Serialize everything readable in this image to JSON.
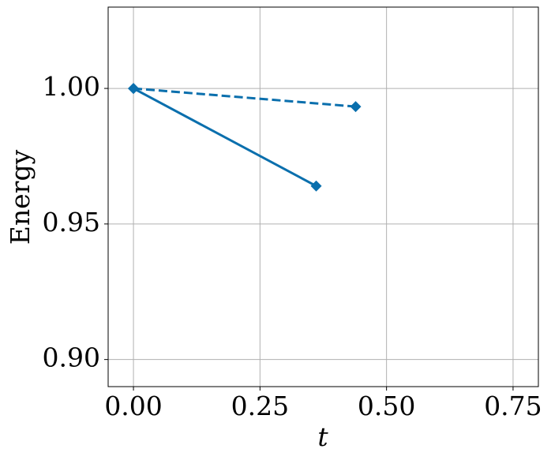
{
  "chart_data": {
    "type": "line",
    "xlabel": "t",
    "ylabel": "Energy",
    "series": [
      {
        "color": "#0a6fad",
        "linestyle": "solid",
        "marker": "diamond",
        "x": [
          0.0,
          0.361
        ],
        "values": [
          1.0,
          0.964
        ]
      },
      {
        "color": "#0a6fad",
        "linestyle": "dashed",
        "marker": "diamond",
        "x": [
          0.0,
          0.439
        ],
        "values": [
          1.0,
          0.9933
        ]
      }
    ],
    "xlim": [
      -0.05,
      0.8
    ],
    "ylim": [
      0.89,
      1.03
    ],
    "xticks": [
      {
        "value": 0,
        "label": "0.00"
      },
      0.25,
      {
        "value": 0.5,
        "label": "0.50"
      },
      0.75
    ],
    "yticks": [
      {
        "value": 0.9,
        "label": "0.90"
      },
      0.95,
      {
        "value": 1,
        "label": "1.00"
      }
    ],
    "grid": true
  }
}
